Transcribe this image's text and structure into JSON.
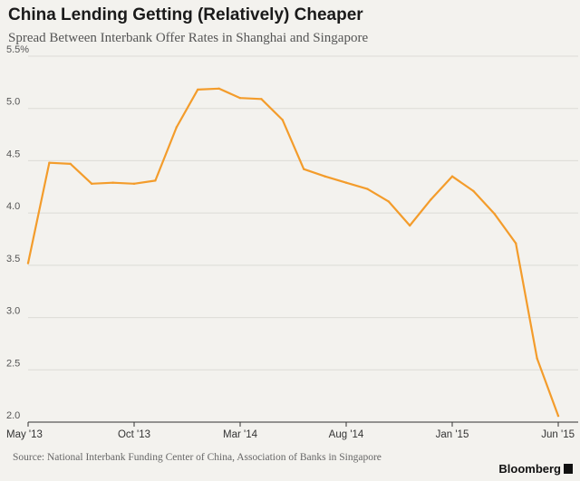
{
  "title": "China Lending Getting (Relatively) Cheaper",
  "subtitle": "Spread Between Interbank Offer Rates in Shanghai and Singapore",
  "source": "Source: National Interbank Funding Center of China, Association of Banks in Singapore",
  "brand": "Bloomberg",
  "colors": {
    "line": "#f39c2b",
    "background": "#f3f2ee",
    "grid": "#dcdbd6",
    "axis": "#333333"
  },
  "chart_data": {
    "type": "line",
    "title": "China Lending Getting (Relatively) Cheaper",
    "xlabel": "",
    "ylabel": "",
    "ylim": [
      2.0,
      5.5
    ],
    "y_ticks": [
      "2.0",
      "2.5",
      "3.0",
      "3.5",
      "4.0",
      "4.5",
      "5.0",
      "5.5%"
    ],
    "y_tick_values": [
      2.0,
      2.5,
      3.0,
      3.5,
      4.0,
      4.5,
      5.0,
      5.5
    ],
    "x_range": [
      "2013-05",
      "2015-06"
    ],
    "x_ticks": [
      {
        "label": "May '13",
        "x": "2013-05"
      },
      {
        "label": "Oct '13",
        "x": "2013-10"
      },
      {
        "label": "Mar '14",
        "x": "2014-03"
      },
      {
        "label": "Aug '14",
        "x": "2014-08"
      },
      {
        "label": "Jan '15",
        "x": "2015-01"
      },
      {
        "label": "Jun '15",
        "x": "2015-06"
      }
    ],
    "grid": "horizontal",
    "series": [
      {
        "x": [
          "2013-05",
          "2013-06",
          "2013-07",
          "2013-08",
          "2013-09",
          "2013-10",
          "2013-11",
          "2013-12",
          "2014-01",
          "2014-02",
          "2014-03",
          "2014-04",
          "2014-05",
          "2014-06",
          "2014-07",
          "2014-08",
          "2014-09",
          "2014-10",
          "2014-11",
          "2014-12",
          "2015-01",
          "2015-02",
          "2015-03",
          "2015-04",
          "2015-05",
          "2015-06"
        ],
        "values": [
          3.52,
          4.48,
          4.47,
          4.28,
          4.29,
          4.28,
          4.31,
          4.82,
          5.18,
          5.19,
          5.1,
          5.09,
          4.89,
          4.42,
          4.35,
          4.29,
          4.23,
          4.11,
          3.88,
          4.13,
          4.35,
          4.21,
          3.99,
          3.71,
          2.61,
          2.06
        ]
      }
    ]
  }
}
